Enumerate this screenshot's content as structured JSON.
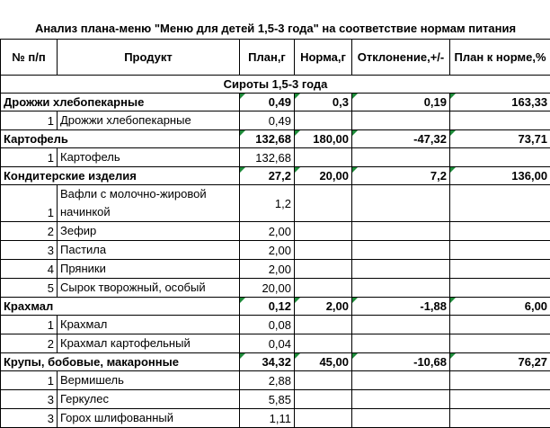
{
  "title": "Анализ плана-меню \"Меню для детей 1,5-3 года\" на соответствие нормам питания",
  "header": [
    "№ п/п",
    "Продукт",
    "План,г",
    "Норма,г",
    "Отклонение,+/-",
    "План к норме,%"
  ],
  "section": "Сироты 1,5-3 года",
  "groups": [
    {
      "name": "Дрожжи хлебопекарные",
      "plan": "0,49",
      "norm": "0,3",
      "deviation": "0,19",
      "ratio": "163,33",
      "items": [
        {
          "no": 1,
          "product": "Дрожжи хлебопекарные",
          "plan": "0,49"
        }
      ]
    },
    {
      "name": "Картофель",
      "plan": "132,68",
      "norm": "180,00",
      "deviation": "-47,32",
      "ratio": "73,71",
      "items": [
        {
          "no": 1,
          "product": "Картофель",
          "plan": "132,68"
        }
      ]
    },
    {
      "name": "Кондитерские изделия",
      "plan": "27,2",
      "norm": "20,00",
      "deviation": "7,2",
      "ratio": "136,00",
      "items": [
        {
          "no": 1,
          "product": "Вафли с молочно-жировой начинкой",
          "plan": "1,2"
        },
        {
          "no": 2,
          "product": "Зефир",
          "plan": "2,00"
        },
        {
          "no": 3,
          "product": "Пастила",
          "plan": "2,00"
        },
        {
          "no": 4,
          "product": "Пряники",
          "plan": "2,00"
        },
        {
          "no": 5,
          "product": "Сырок творожный, особый",
          "plan": "20,00"
        }
      ]
    },
    {
      "name": "Крахмал",
      "plan": "0,12",
      "norm": "2,00",
      "deviation": "-1,88",
      "ratio": "6,00",
      "items": [
        {
          "no": 1,
          "product": "Крахмал",
          "plan": "0,08"
        },
        {
          "no": 2,
          "product": "Крахмал картофельный",
          "plan": "0,04"
        }
      ]
    },
    {
      "name": "Крупы, бобовые, макаронные",
      "plan": "34,32",
      "norm": "45,00",
      "deviation": "-10,68",
      "ratio": "76,27",
      "items": [
        {
          "no": 1,
          "product": "Вермишель",
          "plan": "2,88"
        },
        {
          "no": 3,
          "product": "Геркулес",
          "plan": "5,85"
        },
        {
          "no": 3,
          "product": "Горох шлифованный",
          "plan": "1,11"
        }
      ]
    }
  ]
}
